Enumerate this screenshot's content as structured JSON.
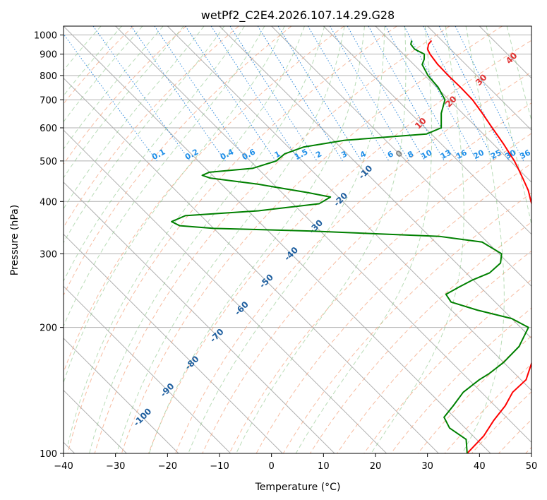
{
  "chart_data": {
    "type": "skew-t",
    "title": "wetPf2_C2E4.2026.107.14.29.G28",
    "xlabel": "Temperature (°C)",
    "ylabel": "Pressure (hPa)",
    "xlim": [
      -40,
      50
    ],
    "ylim": [
      1050,
      100
    ],
    "x_ticks": [
      -40,
      -30,
      -20,
      -10,
      0,
      10,
      20,
      30,
      40,
      50
    ],
    "y_ticks": [
      100,
      200,
      300,
      400,
      500,
      600,
      700,
      800,
      900,
      1000
    ],
    "dry_adiabat_labels": [
      "-100",
      "-90",
      "-80",
      "-70",
      "-60",
      "-50",
      "-40",
      "-30",
      "-20",
      "-10",
      "0",
      "10",
      "20",
      "30",
      "40"
    ],
    "mixing_ratio_labels": [
      "0.1",
      "0.2",
      "0.4",
      "0.6",
      "1",
      "1.5",
      "2",
      "3",
      "4",
      "6",
      "8",
      "10",
      "13",
      "16",
      "20",
      "25",
      "30",
      "36"
    ],
    "series": [
      {
        "name": "temperature",
        "color": "#ff0000",
        "points": [
          [
            970,
            28.0
          ],
          [
            950,
            26.7
          ],
          [
            925,
            25.6
          ],
          [
            900,
            25.1
          ],
          [
            850,
            24.6
          ],
          [
            800,
            24.5
          ],
          [
            750,
            24.6
          ],
          [
            700,
            24.5
          ],
          [
            650,
            23.8
          ],
          [
            600,
            22.9
          ],
          [
            550,
            22.0
          ],
          [
            500,
            20.8
          ],
          [
            475,
            19.9
          ],
          [
            450,
            18.9
          ],
          [
            425,
            17.8
          ],
          [
            400,
            16.2
          ],
          [
            375,
            14.7
          ],
          [
            350,
            12.8
          ],
          [
            325,
            9.7
          ],
          [
            300,
            6.5
          ],
          [
            275,
            3.7
          ],
          [
            250,
            1.6
          ],
          [
            225,
            -1.0
          ],
          [
            210,
            -3.4
          ],
          [
            200,
            -5.5
          ],
          [
            180,
            -10.5
          ],
          [
            160,
            -16.0
          ],
          [
            150,
            -19.0
          ],
          [
            140,
            -24.0
          ],
          [
            130,
            -28.0
          ],
          [
            120,
            -33.0
          ],
          [
            110,
            -38.0
          ],
          [
            100,
            -44.5
          ]
        ]
      },
      {
        "name": "dewpoint",
        "color": "#008000",
        "points": [
          [
            970,
            24.2
          ],
          [
            950,
            23.3
          ],
          [
            925,
            23.1
          ],
          [
            900,
            24.0
          ],
          [
            875,
            23.0
          ],
          [
            850,
            21.6
          ],
          [
            800,
            20.6
          ],
          [
            750,
            20.3
          ],
          [
            700,
            19.2
          ],
          [
            650,
            15.9
          ],
          [
            600,
            13.1
          ],
          [
            580,
            9.1
          ],
          [
            560,
            -8.0
          ],
          [
            540,
            -17.0
          ],
          [
            520,
            -22.0
          ],
          [
            500,
            -25.0
          ],
          [
            480,
            -31.0
          ],
          [
            470,
            -40.0
          ],
          [
            462,
            -42.0
          ],
          [
            455,
            -41.0
          ],
          [
            440,
            -33.0
          ],
          [
            420,
            -25.0
          ],
          [
            410,
            -21.5
          ],
          [
            395,
            -25.0
          ],
          [
            380,
            -38.0
          ],
          [
            370,
            -53.0
          ],
          [
            358,
            -56.8
          ],
          [
            350,
            -56.0
          ],
          [
            345,
            -50.0
          ],
          [
            340,
            -32.0
          ],
          [
            330,
            -8.0
          ],
          [
            320,
            -1.0
          ],
          [
            300,
            0.5
          ],
          [
            285,
            -1.5
          ],
          [
            270,
            -5.5
          ],
          [
            260,
            -10.0
          ],
          [
            250,
            -14.0
          ],
          [
            240,
            -18.0
          ],
          [
            230,
            -18.5
          ],
          [
            220,
            -15.0
          ],
          [
            210,
            -10.0
          ],
          [
            200,
            -8.5
          ],
          [
            180,
            -14.0
          ],
          [
            165,
            -20.0
          ],
          [
            155,
            -25.0
          ],
          [
            150,
            -28.0
          ],
          [
            140,
            -33.5
          ],
          [
            130,
            -38.0
          ],
          [
            122,
            -42.0
          ],
          [
            115,
            -43.0
          ],
          [
            108,
            -42.0
          ],
          [
            100,
            -44.5
          ]
        ]
      }
    ]
  }
}
